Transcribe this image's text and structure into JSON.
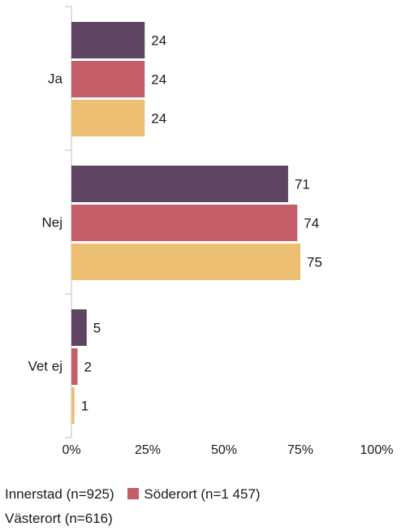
{
  "chart_data": {
    "type": "bar",
    "orientation": "horizontal",
    "categories": [
      "Ja",
      "Nej",
      "Vet ej"
    ],
    "series": [
      {
        "name": "Innerstad (n=925)",
        "values": [
          24,
          71,
          5
        ],
        "color": "#5f4563"
      },
      {
        "name": "Söderort (n=1 457)",
        "values": [
          24,
          74,
          2
        ],
        "color": "#c45f69"
      },
      {
        "name": "Västerort (n=616)",
        "values": [
          24,
          75,
          1
        ],
        "color": "#ecbf72"
      }
    ],
    "x_ticks": [
      "0%",
      "25%",
      "50%",
      "75%",
      "100%"
    ],
    "xlim": [
      0,
      100
    ],
    "data_labels": true,
    "legend_position": "bottom",
    "grid": false
  }
}
